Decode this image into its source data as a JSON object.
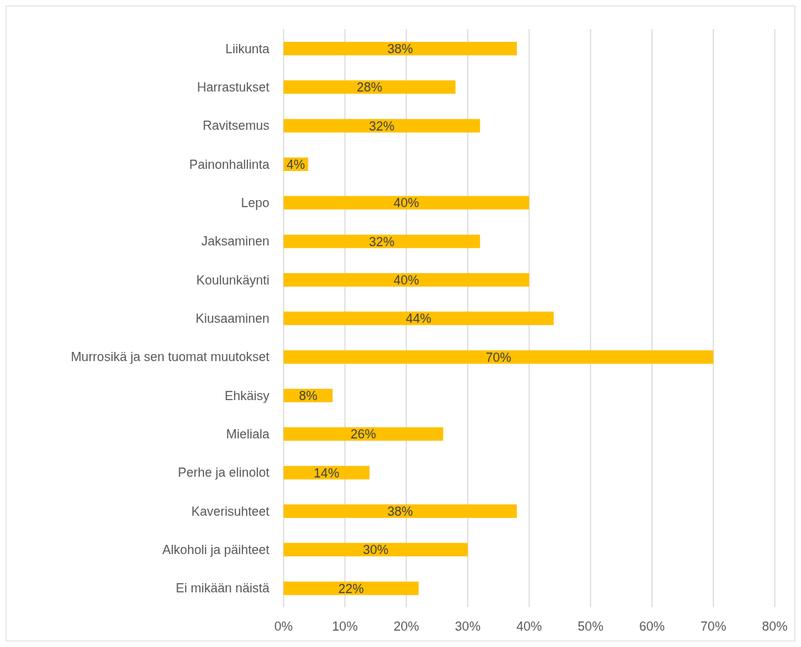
{
  "chart_data": {
    "type": "bar",
    "orientation": "horizontal",
    "categories": [
      "Liikunta",
      "Harrastukset",
      "Ravitsemus",
      "Painonhallinta",
      "Lepo",
      "Jaksaminen",
      "Koulunkäynti",
      "Kiusaaminen",
      "Murrosikä ja sen tuomat muutokset",
      "Ehkäisy",
      "Mieliala",
      "Perhe ja elinolot",
      "Kaverisuhteet",
      "Alkoholi ja päihteet",
      "Ei mikään näistä"
    ],
    "values": [
      38,
      28,
      32,
      4,
      40,
      32,
      40,
      44,
      70,
      8,
      26,
      14,
      38,
      30,
      22
    ],
    "value_labels": [
      "38%",
      "28%",
      "32%",
      "4%",
      "40%",
      "32%",
      "40%",
      "44%",
      "70%",
      "8%",
      "26%",
      "14%",
      "38%",
      "30%",
      "22%"
    ],
    "color": "#ffc000",
    "xlim": [
      0,
      80
    ],
    "xticks": [
      {
        "value": 0,
        "label": "0%"
      },
      {
        "value": 10,
        "label": "10%"
      },
      {
        "value": 20,
        "label": "20%"
      },
      {
        "value": 30,
        "label": "30%"
      },
      {
        "value": 40,
        "label": "40%"
      },
      {
        "value": 50,
        "label": "50%"
      },
      {
        "value": 60,
        "label": "60%"
      },
      {
        "value": 70,
        "label": "70%"
      },
      {
        "value": 80,
        "label": "80%"
      }
    ],
    "grid": "x"
  }
}
